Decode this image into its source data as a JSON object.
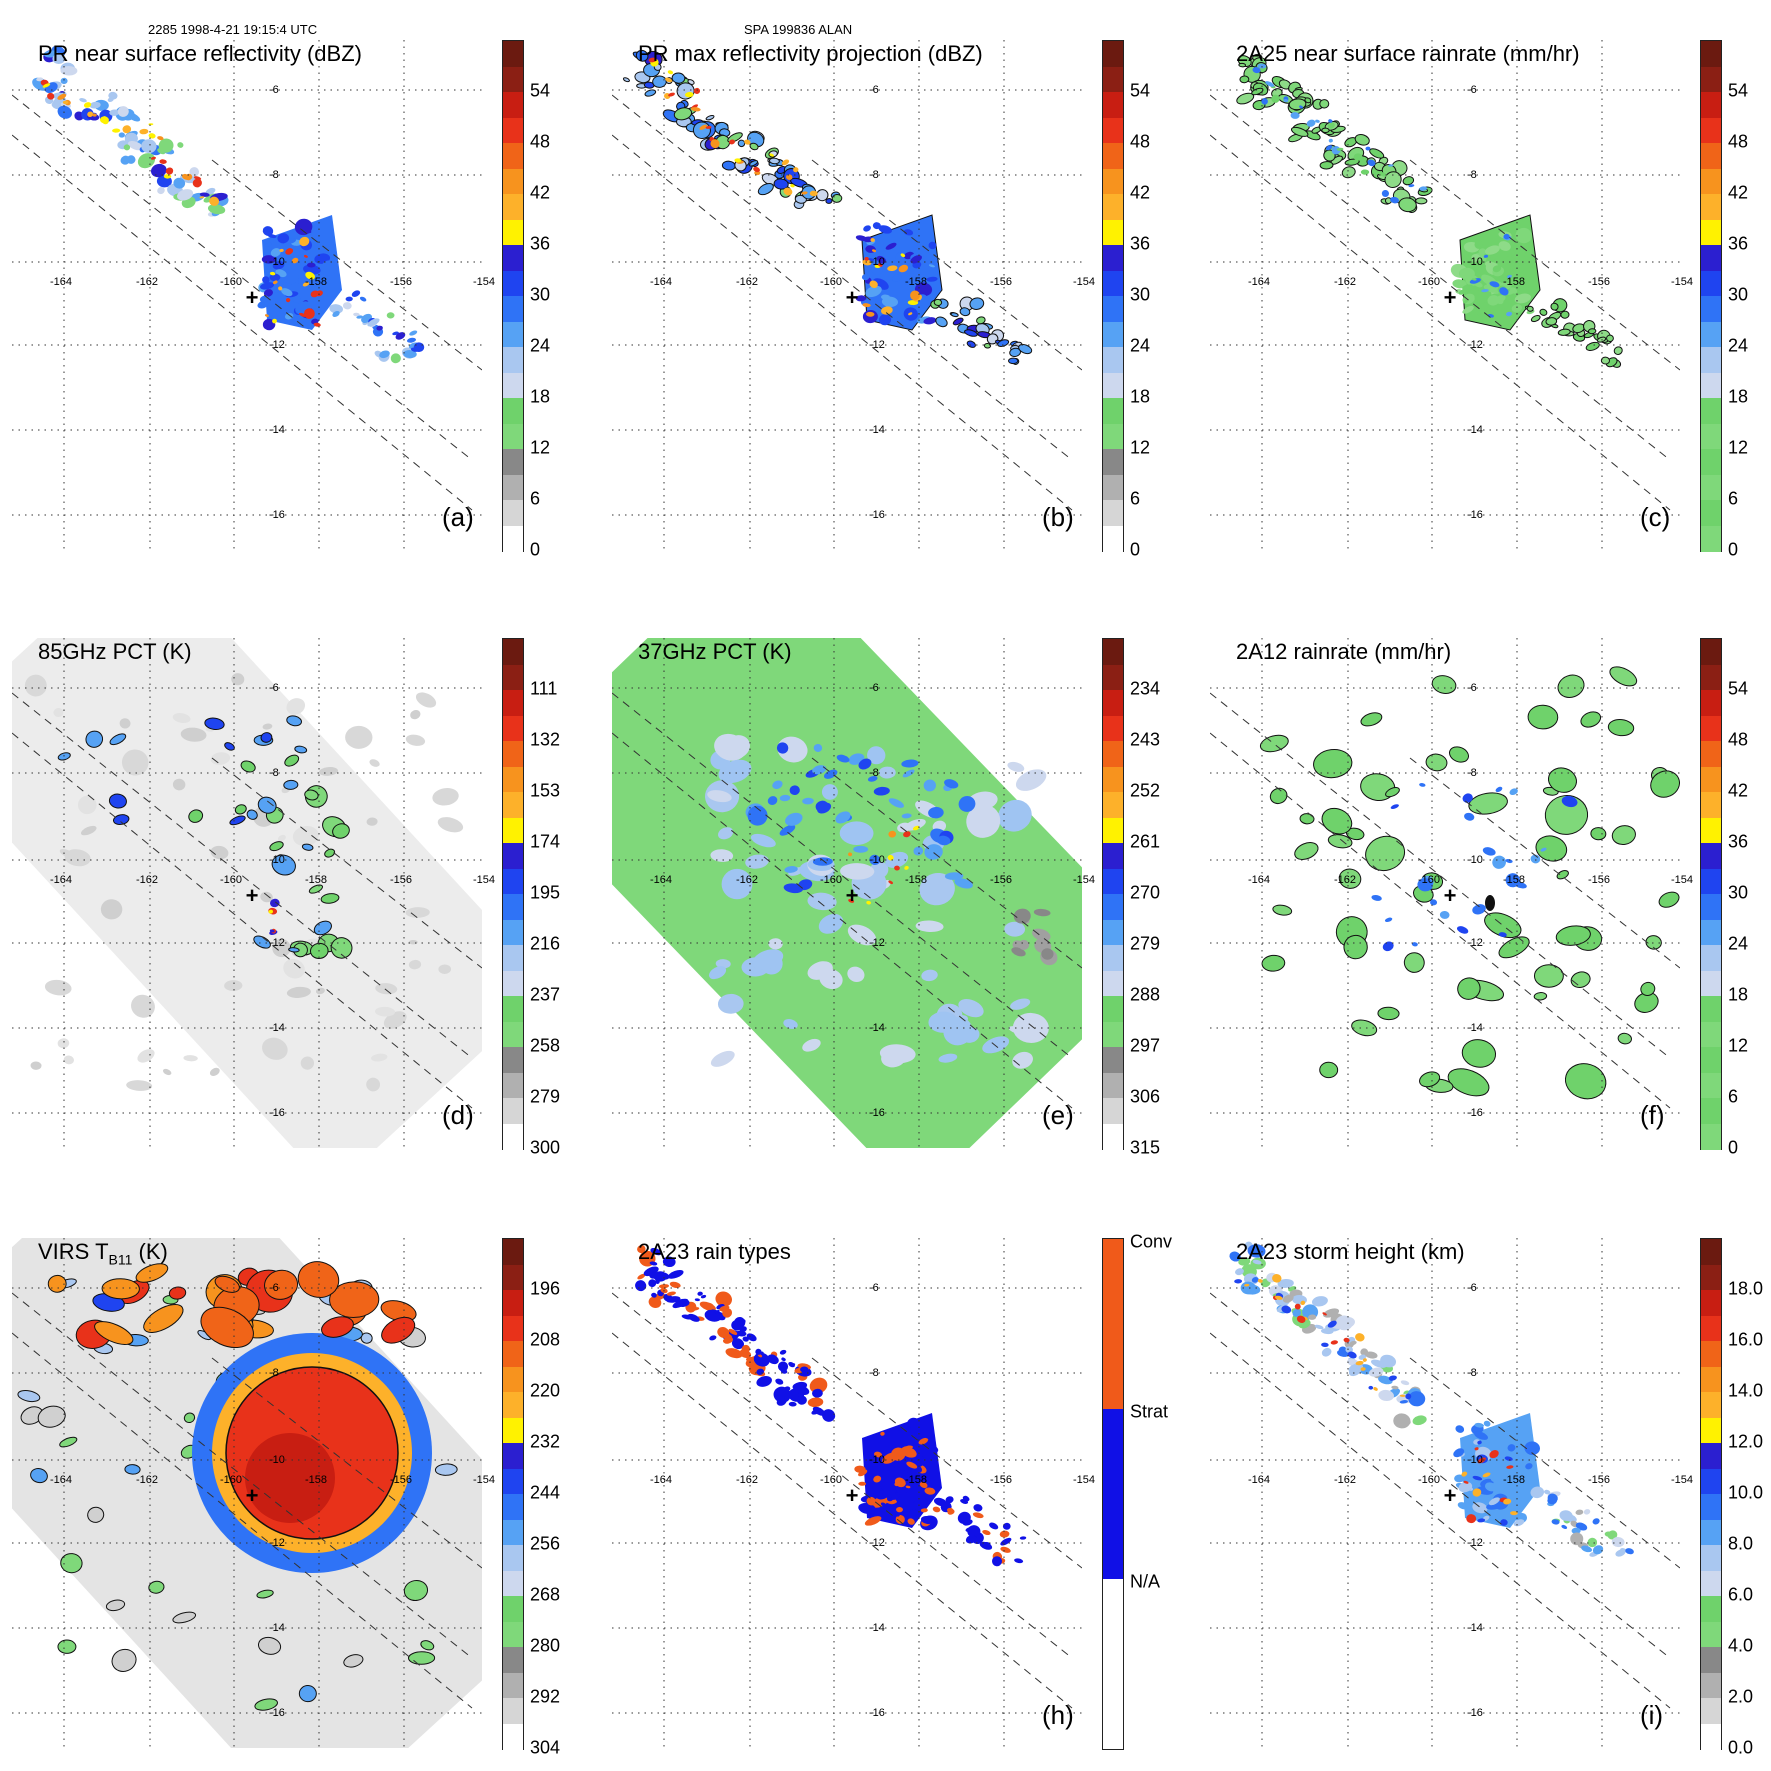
{
  "header": {
    "left": "2285 1998-4-21 19:15:4 UTC",
    "right": "SPA 199836 ALAN"
  },
  "grid": {
    "lon_labels": [
      "-164",
      "-162",
      "-160",
      "-158",
      "-156",
      "-154"
    ],
    "lat_labels": [
      "-6",
      "-8",
      "-10",
      "-12",
      "-14",
      "-16"
    ],
    "center_marker": "+"
  },
  "panels": [
    {
      "id": "a",
      "title": "PR near surface reflectivity (dBZ)",
      "tag": "(a)",
      "kind": "pr_ref",
      "ticks": [
        "54",
        "48",
        "42",
        "36",
        "30",
        "24",
        "18",
        "12",
        "6",
        "0"
      ],
      "colors": [
        "#6b1a10",
        "#8b1f14",
        "#c81e12",
        "#e8321a",
        "#f06418",
        "#f7931e",
        "#fdb12a",
        "#fff200",
        "#2b1fd0",
        "#1f44f0",
        "#2f73f6",
        "#56a2f4",
        "#a9c7f0",
        "#cdd8ee",
        "#6fd26b",
        "#7fd87a",
        "#888888",
        "#b0b0b0",
        "#d6d6d6",
        "#ffffff"
      ]
    },
    {
      "id": "b",
      "title": "PR max reflectivity projection (dBZ)",
      "tag": "(b)",
      "kind": "pr_max",
      "ticks": [
        "54",
        "48",
        "42",
        "36",
        "30",
        "24",
        "18",
        "12",
        "6",
        "0"
      ],
      "colors": [
        "#6b1a10",
        "#8b1f14",
        "#c81e12",
        "#e8321a",
        "#f06418",
        "#f7931e",
        "#fdb12a",
        "#fff200",
        "#2b1fd0",
        "#1f44f0",
        "#2f73f6",
        "#56a2f4",
        "#a9c7f0",
        "#cdd8ee",
        "#6fd26b",
        "#7fd87a",
        "#888888",
        "#b0b0b0",
        "#d6d6d6",
        "#ffffff"
      ]
    },
    {
      "id": "c",
      "title": "2A25 near surface rainrate (mm/hr)",
      "tag": "(c)",
      "kind": "rain25",
      "ticks": [
        "54",
        "48",
        "42",
        "36",
        "30",
        "24",
        "18",
        "12",
        "6",
        "0"
      ],
      "colors": [
        "#6b1a10",
        "#8b1f14",
        "#c81e12",
        "#e8321a",
        "#f06418",
        "#f7931e",
        "#fdb12a",
        "#fff200",
        "#2b1fd0",
        "#1f44f0",
        "#2f73f6",
        "#56a2f4",
        "#a9c7f0",
        "#cdd8ee",
        "#6fd26b",
        "#7fd87a",
        "#6fd26b",
        "#7fd87a",
        "#6fd26b",
        "#7fd87a"
      ]
    },
    {
      "id": "d",
      "title": "85GHz PCT (K)",
      "tag": "(d)",
      "kind": "pct85",
      "ticks": [
        "111",
        "132",
        "153",
        "174",
        "195",
        "216",
        "237",
        "258",
        "279",
        "300"
      ],
      "colors": [
        "#6b1a10",
        "#8b1f14",
        "#c81e12",
        "#e8321a",
        "#f06418",
        "#f7931e",
        "#fdb12a",
        "#fff200",
        "#2b1fd0",
        "#1f44f0",
        "#2f73f6",
        "#56a2f4",
        "#a9c7f0",
        "#cdd8ee",
        "#6fd26b",
        "#7fd87a",
        "#888888",
        "#b0b0b0",
        "#d6d6d6",
        "#ffffff"
      ]
    },
    {
      "id": "e",
      "title": "37GHz PCT (K)",
      "tag": "(e)",
      "kind": "pct37",
      "ticks": [
        "234",
        "243",
        "252",
        "261",
        "270",
        "279",
        "288",
        "297",
        "306",
        "315"
      ],
      "colors": [
        "#6b1a10",
        "#8b1f14",
        "#c81e12",
        "#e8321a",
        "#f06418",
        "#f7931e",
        "#fdb12a",
        "#fff200",
        "#2b1fd0",
        "#1f44f0",
        "#2f73f6",
        "#56a2f4",
        "#a9c7f0",
        "#cdd8ee",
        "#6fd26b",
        "#7fd87a",
        "#888888",
        "#b0b0b0",
        "#d6d6d6",
        "#ffffff"
      ]
    },
    {
      "id": "f",
      "title": "2A12 rainrate (mm/hr)",
      "tag": "(f)",
      "kind": "rain12",
      "ticks": [
        "54",
        "48",
        "42",
        "36",
        "30",
        "24",
        "18",
        "12",
        "6",
        "0"
      ],
      "colors": [
        "#6b1a10",
        "#8b1f14",
        "#c81e12",
        "#e8321a",
        "#f06418",
        "#f7931e",
        "#fdb12a",
        "#fff200",
        "#2b1fd0",
        "#1f44f0",
        "#2f73f6",
        "#56a2f4",
        "#a9c7f0",
        "#cdd8ee",
        "#6fd26b",
        "#7fd87a",
        "#6fd26b",
        "#7fd87a",
        "#6fd26b",
        "#7fd87a"
      ]
    },
    {
      "id": "g",
      "title": "VIRS T",
      "title_sub": "B11",
      "title_after": " (K)",
      "tag": "",
      "kind": "virs",
      "ticks": [
        "196",
        "208",
        "220",
        "232",
        "244",
        "256",
        "268",
        "280",
        "292",
        "304"
      ],
      "colors": [
        "#6b1a10",
        "#8b1f14",
        "#c81e12",
        "#e8321a",
        "#f06418",
        "#f7931e",
        "#fdb12a",
        "#fff200",
        "#2b1fd0",
        "#1f44f0",
        "#2f73f6",
        "#56a2f4",
        "#a9c7f0",
        "#cdd8ee",
        "#6fd26b",
        "#7fd87a",
        "#888888",
        "#b0b0b0",
        "#d6d6d6",
        "#ffffff"
      ]
    },
    {
      "id": "h",
      "title": "2A23 rain types",
      "tag": "(h)",
      "kind": "types",
      "type_labels": [
        "Conv",
        "Strat",
        "N/A"
      ],
      "type_colors": [
        "#f05a1a",
        "#1010e6",
        "#ffffff"
      ]
    },
    {
      "id": "i",
      "title": "2A23 storm height (km)",
      "tag": "(i)",
      "kind": "height",
      "ticks": [
        "18.0",
        "16.0",
        "14.0",
        "12.0",
        "10.0",
        "8.0",
        "6.0",
        "4.0",
        "2.0",
        "0.0"
      ],
      "colors": [
        "#6b1a10",
        "#8b1f14",
        "#c81e12",
        "#e8321a",
        "#f06418",
        "#f7931e",
        "#fdb12a",
        "#fff200",
        "#2b1fd0",
        "#1f44f0",
        "#2f73f6",
        "#56a2f4",
        "#a9c7f0",
        "#cdd8ee",
        "#6fd26b",
        "#7fd87a",
        "#888888",
        "#b0b0b0",
        "#d6d6d6",
        "#ffffff"
      ]
    }
  ]
}
